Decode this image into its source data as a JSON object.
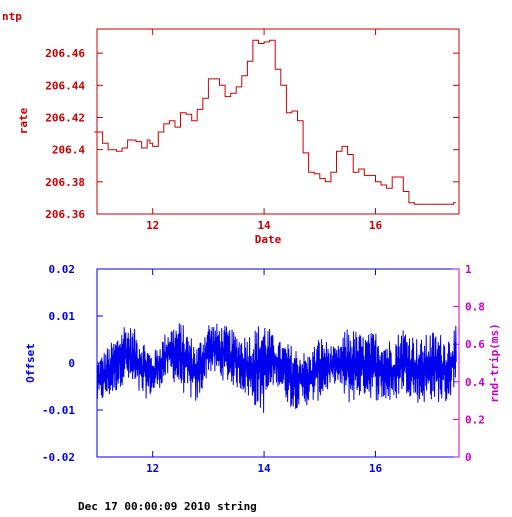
{
  "page_label": "ntp",
  "footer": "Dec 17 00:00:09 2010 string",
  "colors": {
    "rate": "#cc0000",
    "offset": "#0000ee",
    "rtt": "#cc00cc"
  },
  "chart_data": [
    {
      "type": "line",
      "xlabel": "Date",
      "ylabel": "rate",
      "xlim": [
        11,
        17.5
      ],
      "ylim": [
        206.36,
        206.475
      ],
      "xticks": [
        12,
        14,
        16
      ],
      "xtick_labels": [
        "12",
        "14",
        "16"
      ],
      "yticks": [
        206.36,
        206.38,
        206.4,
        206.42,
        206.44,
        206.46
      ],
      "ytick_labels": [
        "206.36",
        "206.38",
        "206.4",
        "206.42",
        "206.44",
        "206.46"
      ],
      "series": [
        {
          "x": [
            10.95,
            11.1,
            11.2,
            11.35,
            11.45,
            11.55,
            11.7,
            11.8,
            11.9,
            11.95,
            12.0,
            12.1,
            12.2,
            12.3,
            12.4,
            12.5,
            12.6,
            12.7,
            12.8,
            12.9,
            13.0,
            13.1,
            13.2,
            13.3,
            13.4,
            13.5,
            13.6,
            13.7,
            13.8,
            13.9,
            14.0,
            14.1,
            14.2,
            14.3,
            14.4,
            14.5,
            14.6,
            14.7,
            14.8,
            14.9,
            15.0,
            15.1,
            15.2,
            15.3,
            15.4,
            15.5,
            15.6,
            15.7,
            15.8,
            15.9,
            16.0,
            16.1,
            16.2,
            16.3,
            16.4,
            16.5,
            16.6,
            16.7,
            16.8,
            16.9,
            17.0,
            17.1,
            17.2,
            17.3,
            17.4,
            17.45
          ],
          "y": [
            206.411,
            206.404,
            206.4,
            206.399,
            206.401,
            206.406,
            206.405,
            206.401,
            206.406,
            206.404,
            206.402,
            206.411,
            206.416,
            206.418,
            206.414,
            206.423,
            206.422,
            206.418,
            206.425,
            206.432,
            206.444,
            206.444,
            206.44,
            206.433,
            206.435,
            206.439,
            206.446,
            206.455,
            206.468,
            206.466,
            206.467,
            206.468,
            206.45,
            206.44,
            206.423,
            206.424,
            206.418,
            206.398,
            206.386,
            206.385,
            206.382,
            206.38,
            206.386,
            206.399,
            206.402,
            206.397,
            206.386,
            206.388,
            206.384,
            206.384,
            206.38,
            206.378,
            206.376,
            206.383,
            206.383,
            206.374,
            206.367,
            206.366,
            206.366,
            206.366,
            206.366,
            206.366,
            206.366,
            206.366,
            206.367,
            206.367
          ]
        }
      ]
    },
    {
      "type": "line",
      "xlabel": "",
      "ylabel": "Offset",
      "y2label": "rnd-trip(ms)",
      "xlim": [
        11,
        17.5
      ],
      "ylim": [
        -0.02,
        0.02
      ],
      "y2lim": [
        0,
        1
      ],
      "xticks": [
        12,
        14,
        16
      ],
      "xtick_labels": [
        "12",
        "14",
        "16"
      ],
      "yticks": [
        -0.02,
        -0.01,
        0,
        0.01,
        0.02
      ],
      "ytick_labels": [
        "-0.02",
        "-0.01",
        "0",
        "0.01",
        "0.02"
      ],
      "y2ticks": [
        0,
        0.2,
        0.4,
        0.6,
        0.8,
        1
      ],
      "y2tick_labels": [
        "0",
        "0.2",
        "0.4",
        "0.6",
        "0.8",
        "1"
      ],
      "series": [
        {
          "name": "Offset",
          "x_range": [
            11.0,
            17.45
          ],
          "samples": 900,
          "envelope_x": [
            11.0,
            11.3,
            11.5,
            11.8,
            12.0,
            12.3,
            12.5,
            12.8,
            13.0,
            13.3,
            13.6,
            13.8,
            14.0,
            14.2,
            14.5,
            14.8,
            15.0,
            15.3,
            15.5,
            15.8,
            16.0,
            16.3,
            16.5,
            16.8,
            17.0,
            17.3,
            17.45
          ],
          "envelope_high": [
            0.001,
            0.005,
            0.009,
            0.006,
            0.002,
            0.008,
            0.009,
            0.004,
            0.009,
            0.008,
            0.006,
            0.007,
            0.01,
            0.005,
            0.004,
            0.002,
            0.006,
            0.003,
            0.008,
            0.006,
            0.007,
            0.005,
            0.008,
            0.005,
            0.007,
            0.006,
            0.008
          ],
          "envelope_low": [
            -0.009,
            -0.007,
            -0.004,
            -0.008,
            -0.007,
            -0.003,
            -0.006,
            -0.009,
            -0.002,
            -0.004,
            -0.006,
            -0.009,
            -0.011,
            -0.004,
            -0.01,
            -0.009,
            -0.008,
            -0.004,
            -0.009,
            -0.007,
            -0.008,
            -0.009,
            -0.006,
            -0.009,
            -0.008,
            -0.009,
            -0.004
          ]
        }
      ]
    }
  ]
}
